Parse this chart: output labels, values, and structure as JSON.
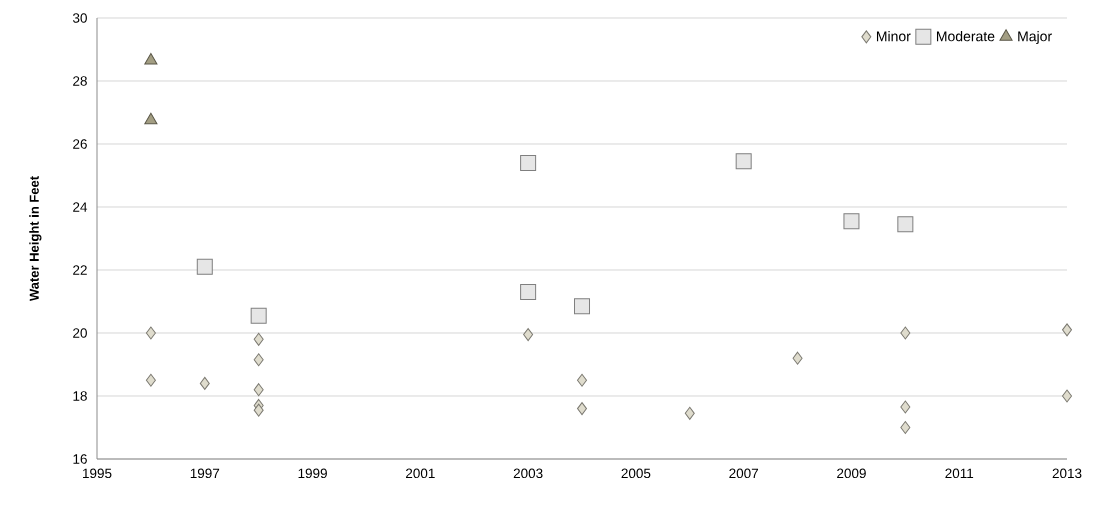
{
  "chart_data": {
    "type": "scatter",
    "ylabel": "Water Height in Feet",
    "xlim": [
      1995,
      2013
    ],
    "xticks": [
      1995,
      1997,
      1999,
      2001,
      2003,
      2005,
      2007,
      2009,
      2011,
      2013
    ],
    "ylim": [
      16,
      30
    ],
    "yticks": [
      16,
      18,
      20,
      22,
      24,
      26,
      28,
      30
    ],
    "grid": "y",
    "legend": "top right",
    "series": [
      {
        "name": "Minor",
        "color": "#dfdccd",
        "marker": "diamond",
        "x": [
          1996,
          1996,
          1997,
          1998,
          1998,
          1998,
          1998,
          1998,
          2003,
          2004,
          2004,
          2006,
          2008,
          2010,
          2010,
          2010,
          2013,
          2013
        ],
        "values": [
          20.0,
          18.5,
          18.4,
          19.8,
          19.15,
          18.2,
          17.7,
          17.55,
          19.95,
          18.5,
          17.6,
          17.45,
          19.2,
          20.0,
          17.65,
          17.0,
          20.1,
          18.0
        ]
      },
      {
        "name": "Moderate",
        "color": "#e6e6e6",
        "marker": "square",
        "x": [
          1997,
          1998,
          2003,
          2003,
          2004,
          2007,
          2009,
          2010
        ],
        "values": [
          22.1,
          20.55,
          25.4,
          21.3,
          20.85,
          25.45,
          23.55,
          23.45
        ]
      },
      {
        "name": "Major",
        "color": "#a39e83",
        "marker": "triangle",
        "x": [
          1996,
          1996
        ],
        "values": [
          28.65,
          26.75
        ]
      }
    ]
  }
}
